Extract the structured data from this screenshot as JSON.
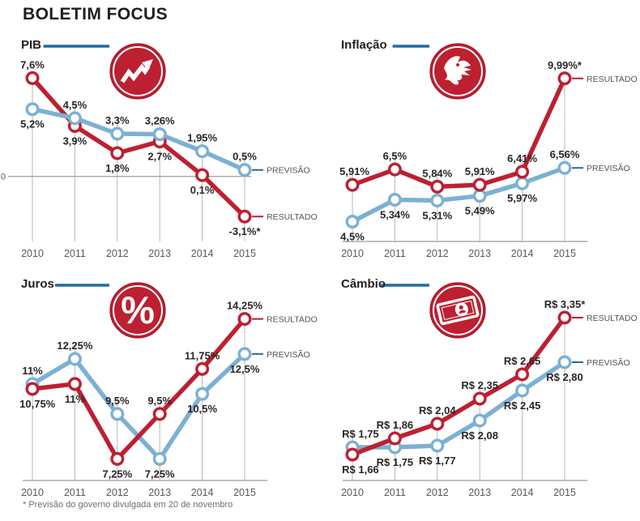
{
  "title": "BOLETIM FOCUS",
  "footnote": "* Previsão do governo divulgada em 20 de novembro",
  "colors": {
    "resultado": "#bc2031",
    "previsao": "#7cb0d4",
    "header_rule": "#1d6ca4",
    "icon_bg": "#bc2031",
    "icon_edge": "#9e1b29",
    "grid": "#b7b7b9",
    "axis_line": "#9b9b9d",
    "label_text": "#2a2627",
    "axis_text": "#5a5a5c",
    "legend_text": "#545456",
    "legend_tick_previsao": "#35648c",
    "title_text": "#221e1f",
    "footnote_text": "#6d6e70",
    "background": "#ffffff"
  },
  "chart_data": [
    {
      "type": "line",
      "title": "PIB",
      "icon": "trend-arrow-icon",
      "categories": [
        "2010",
        "2011",
        "2012",
        "2013",
        "2014",
        "2015"
      ],
      "ylim": [
        -3.9,
        8.0
      ],
      "zero_line": true,
      "zero_label": "0",
      "baseline": false,
      "grid": true,
      "legend_position": "right-of-last-point",
      "series": [
        {
          "name": "RESULTADO",
          "color_key": "resultado",
          "values": [
            7.6,
            3.9,
            1.8,
            2.7,
            0.1,
            -3.1
          ],
          "labels": [
            "7,6%",
            "3,9%",
            "1,8%",
            "2,7%",
            "0,1%",
            "-3,1%*"
          ],
          "label_pos": [
            "above",
            "below",
            "below",
            "below",
            "below",
            "below"
          ]
        },
        {
          "name": "PREVISÃO",
          "color_key": "previsao",
          "values": [
            5.2,
            4.5,
            3.3,
            3.26,
            1.95,
            0.5
          ],
          "labels": [
            "5,2%",
            "4,5%",
            "3,3%",
            "3,26%",
            "1,95%",
            "0,5%"
          ],
          "label_pos": [
            "below",
            "above",
            "above",
            "above",
            "above",
            "above"
          ]
        }
      ]
    },
    {
      "type": "line",
      "title": "Inflação",
      "icon": "dragon-icon",
      "categories": [
        "2010",
        "2011",
        "2012",
        "2013",
        "2014",
        "2015"
      ],
      "ylim": [
        4.3,
        10.2
      ],
      "zero_line": false,
      "baseline": true,
      "grid": true,
      "legend_position": "right-of-last-point",
      "series": [
        {
          "name": "PREVISÃO",
          "color_key": "previsao",
          "values": [
            4.5,
            5.34,
            5.31,
            5.49,
            5.97,
            6.56
          ],
          "labels": [
            "4,5%",
            "5,34%",
            "5,31%",
            "5,49%",
            "5,97%",
            "6,56%"
          ],
          "label_pos": [
            "below",
            "below",
            "below",
            "below",
            "below",
            "above"
          ]
        },
        {
          "name": "RESULTADO",
          "color_key": "resultado",
          "values": [
            5.91,
            6.5,
            5.84,
            5.91,
            6.41,
            9.99
          ],
          "labels": [
            "5,91%",
            "6,5%",
            "5,84%",
            "5,91%",
            "6,41%",
            "9,99%*"
          ],
          "label_pos": [
            "above",
            "above",
            "above",
            "above",
            "above",
            "above"
          ]
        }
      ]
    },
    {
      "type": "line",
      "title": "Juros",
      "icon": "percent-icon",
      "categories": [
        "2010",
        "2011",
        "2012",
        "2013",
        "2014",
        "2015"
      ],
      "ylim": [
        6.9,
        14.6
      ],
      "zero_line": false,
      "baseline": true,
      "grid": true,
      "legend_position": "right-of-last-point",
      "series": [
        {
          "name": "PREVISÃO",
          "color_key": "previsao",
          "values": [
            11,
            12.25,
            9.5,
            7.25,
            10.5,
            12.5
          ],
          "labels": [
            "11%",
            "12,25%",
            "9,5%",
            "7,25%",
            "10,5%",
            "12,5%"
          ],
          "label_pos": [
            "above",
            "above",
            "above",
            "below",
            "below",
            "below"
          ]
        },
        {
          "name": "RESULTADO",
          "color_key": "resultado",
          "values": [
            10.75,
            11,
            7.25,
            9.5,
            11.75,
            14.25
          ],
          "labels": [
            "10,75%",
            "11%",
            "7,25%",
            "9,5%",
            "11,75%",
            "14,25%"
          ],
          "label_pos": [
            "below",
            "below",
            "below",
            "above",
            "above",
            "above"
          ]
        }
      ]
    },
    {
      "type": "line",
      "title": "Câmbio",
      "icon": "banknote-icon",
      "categories": [
        "2010",
        "2011",
        "2012",
        "2013",
        "2014",
        "2015"
      ],
      "ylim": [
        1.52,
        3.42
      ],
      "zero_line": false,
      "baseline": true,
      "grid": true,
      "legend_position": "right-of-last-point",
      "series": [
        {
          "name": "PREVISÃO",
          "color_key": "previsao",
          "values": [
            1.75,
            1.75,
            1.77,
            2.08,
            2.45,
            2.8
          ],
          "labels": [
            "R$ 1,75",
            "R$ 1,75",
            "R$ 1,77",
            "R$ 2,08",
            "R$ 2,45",
            "R$ 2,80"
          ],
          "label_pos": [
            "above",
            "below",
            "below",
            "below",
            "below",
            "below"
          ]
        },
        {
          "name": "RESULTADO",
          "color_key": "resultado",
          "values": [
            1.66,
            1.86,
            2.04,
            2.35,
            2.65,
            3.35
          ],
          "labels": [
            "R$ 1,66",
            "R$ 1,86",
            "R$ 2,04",
            "R$ 2,35",
            "R$ 2,65",
            "R$ 3,35*"
          ],
          "label_pos": [
            "below",
            "above",
            "above",
            "above",
            "above",
            "above"
          ]
        }
      ]
    }
  ]
}
